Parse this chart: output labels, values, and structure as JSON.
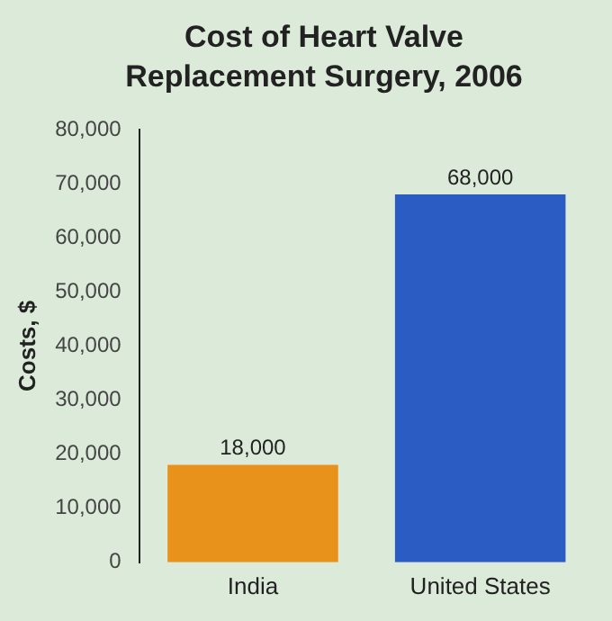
{
  "chart_data": {
    "type": "bar",
    "title": "Cost of Heart Valve Replacement Surgery, 2006",
    "ylabel": "Costs, $",
    "categories": [
      "India",
      "United States"
    ],
    "values": [
      18000,
      68000
    ],
    "colors": [
      "#e8921c",
      "#2a5cc4"
    ],
    "value_labels": [
      "18,000",
      "68,000"
    ],
    "ylim": [
      0,
      80000
    ],
    "yticks": [
      {
        "value": 0,
        "label": "0"
      },
      {
        "value": 10000,
        "label": "10,000"
      },
      {
        "value": 20000,
        "label": "20,000"
      },
      {
        "value": 30000,
        "label": "30,000"
      },
      {
        "value": 40000,
        "label": "40,000"
      },
      {
        "value": 50000,
        "label": "50,000"
      },
      {
        "value": 60000,
        "label": "60,000"
      },
      {
        "value": 70000,
        "label": "70,000"
      },
      {
        "value": 80000,
        "label": "80,000"
      }
    ],
    "grid": false,
    "legend": false
  }
}
